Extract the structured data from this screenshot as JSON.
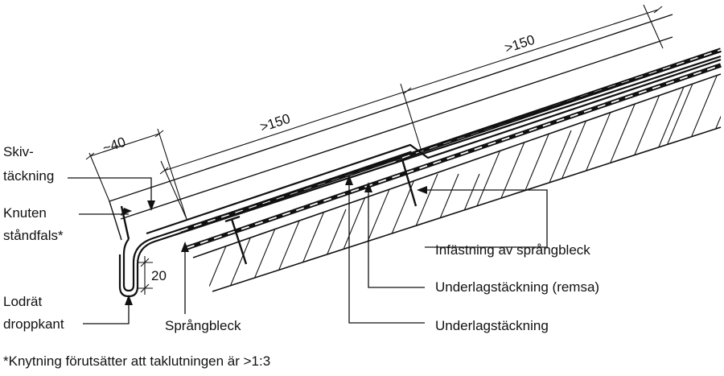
{
  "labels": {
    "skivtackning_line1": "Skiv-",
    "skivtackning_line2": "täckning",
    "knuten_line1": "Knuten",
    "knuten_line2": "ståndfals*",
    "lodrat_line1": "Lodrät",
    "lodrat_line2": "droppkant",
    "sprangbleck": "Språngbleck",
    "infastning": "Infästning av språngbleck",
    "underlag_remsa": "Underlagstäckning (remsa)",
    "underlag": "Underlagstäckning"
  },
  "dimensions": {
    "d40": "~40",
    "d150_a": ">150",
    "d150_b": ">150",
    "d20": "20"
  },
  "footnote": "*Knytning förutsätter att taklutningen är >1:3",
  "colors": {
    "ink": "#111111",
    "background": "#ffffff"
  }
}
